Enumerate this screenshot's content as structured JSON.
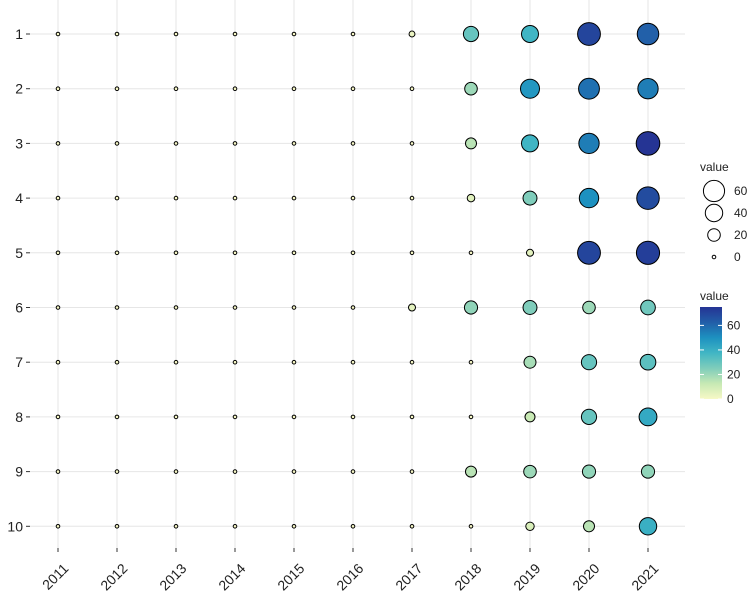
{
  "chart_data": {
    "type": "bubble",
    "x": [
      "2011",
      "2012",
      "2013",
      "2014",
      "2015",
      "2016",
      "2017",
      "2018",
      "2019",
      "2020",
      "2021"
    ],
    "y": [
      "1",
      "2",
      "3",
      "4",
      "5",
      "6",
      "7",
      "8",
      "9",
      "10"
    ],
    "values": [
      [
        0,
        0,
        0,
        0,
        0,
        0,
        3,
        30,
        38,
        70,
        62
      ],
      [
        0,
        0,
        0,
        0,
        0,
        0,
        0,
        20,
        48,
        58,
        55
      ],
      [
        0,
        0,
        0,
        0,
        0,
        0,
        0,
        15,
        38,
        55,
        75
      ],
      [
        0,
        0,
        0,
        0,
        0,
        0,
        0,
        6,
        25,
        50,
        68
      ],
      [
        0,
        0,
        0,
        0,
        0,
        0,
        0,
        0,
        5,
        70,
        72
      ],
      [
        0,
        0,
        0,
        0,
        0,
        0,
        5,
        22,
        25,
        20,
        28
      ],
      [
        0,
        0,
        0,
        0,
        0,
        0,
        0,
        0,
        18,
        30,
        32
      ],
      [
        0,
        0,
        0,
        0,
        0,
        0,
        0,
        0,
        12,
        30,
        42
      ],
      [
        0,
        0,
        0,
        0,
        0,
        0,
        0,
        15,
        20,
        22,
        22
      ],
      [
        0,
        0,
        0,
        0,
        0,
        0,
        0,
        0,
        8,
        15,
        40
      ]
    ],
    "size_legend_title": "value",
    "size_lim": [
      0,
      75
    ],
    "size_ticks": [
      60,
      40,
      20,
      0
    ],
    "fill_legend_title": "value",
    "fill_lim": [
      0,
      75
    ],
    "fill_ticks": [
      0,
      20,
      40,
      60
    ],
    "palette": [
      "#f7f8c6",
      "#c7e9b4",
      "#7fcdbb",
      "#41b6c4",
      "#1d91c0",
      "#225ea8",
      "#253494"
    ],
    "grid": true
  }
}
